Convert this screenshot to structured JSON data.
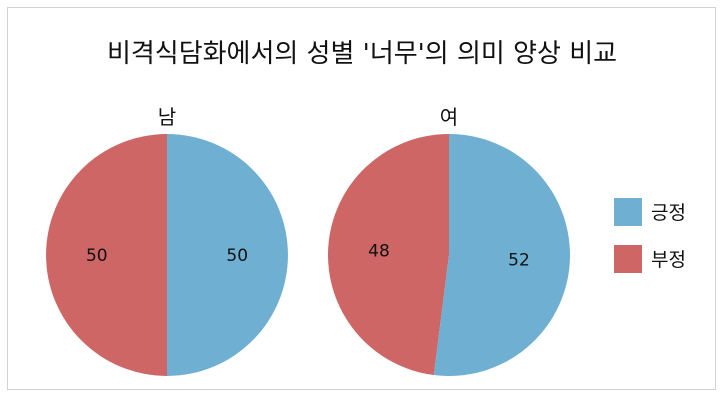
{
  "chart_data": {
    "type": "pie",
    "title": "비격식담화에서의 성별 '너무'의 의미 양상 비교",
    "categories": [
      "긍정",
      "부정"
    ],
    "colors": {
      "긍정": "#6fb0d2",
      "부정": "#cd6665"
    },
    "pies": [
      {
        "name": "남",
        "values": [
          50,
          50
        ]
      },
      {
        "name": "여",
        "values": [
          52,
          48
        ]
      }
    ],
    "legend_position": "right"
  }
}
